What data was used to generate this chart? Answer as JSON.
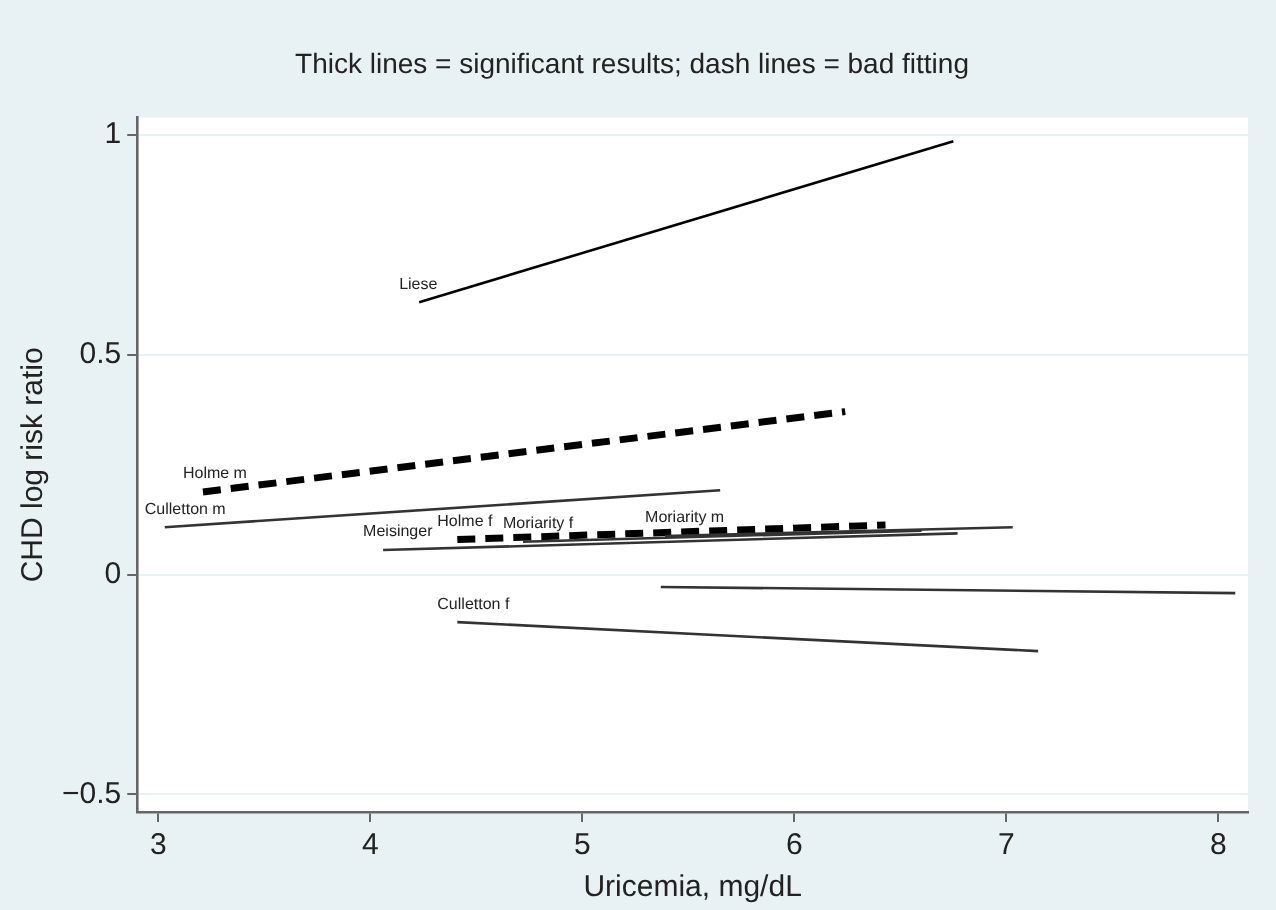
{
  "chart_data": {
    "type": "line",
    "title": "Thick lines = significant results; dash lines = bad fitting",
    "xlabel": "Uricemia, mg/dL",
    "ylabel": "CHD log risk ratio",
    "xlim": [
      2.9,
      8.14
    ],
    "xticks": [
      3,
      4,
      5,
      6,
      7,
      8
    ],
    "ylim": [
      -0.54,
      1.04
    ],
    "yticks": [
      {
        "value": -0.5,
        "label": "−0.5"
      },
      0,
      0.5,
      1
    ],
    "grid": "y",
    "legend": false,
    "marker": "none",
    "series": [
      {
        "name": "Liese",
        "color": "#000000",
        "line_style": "solid",
        "x": [
          4.23,
          6.75
        ],
        "values": [
          0.62,
          0.986
        ]
      },
      {
        "name": "Holme m",
        "color": "#000000",
        "line_style": "dashed",
        "x": [
          3.21,
          6.24
        ],
        "values": [
          0.188,
          0.371
        ]
      },
      {
        "name": "Culletton m",
        "color": "#333333",
        "line_style": "solid",
        "x": [
          3.03,
          5.65
        ],
        "values": [
          0.108,
          0.192
        ]
      },
      {
        "name": "Meisinger",
        "color": "#333333",
        "line_style": "solid",
        "x": [
          4.06,
          6.77
        ],
        "values": [
          0.056,
          0.094
        ]
      },
      {
        "name": "Moriarity f",
        "color": "#333333",
        "line_style": "solid",
        "x": [
          4.72,
          6.6
        ],
        "values": [
          0.075,
          0.1
        ]
      },
      {
        "name": "Moriarity m",
        "color": "#333333",
        "line_style": "solid",
        "x": [
          5.39,
          7.03
        ],
        "values": [
          0.088,
          0.108
        ]
      },
      {
        "name": "Holme f",
        "color": "#000000",
        "line_style": "dashed",
        "x": [
          4.41,
          6.43
        ],
        "values": [
          0.08,
          0.113
        ]
      },
      {
        "color": "#333333",
        "line_style": "solid",
        "x": [
          5.37,
          8.08
        ],
        "values": [
          -0.028,
          -0.042
        ]
      },
      {
        "name": "Culletton f",
        "color": "#333333",
        "line_style": "solid",
        "x": [
          4.41,
          7.15
        ],
        "values": [
          -0.108,
          -0.174
        ]
      }
    ]
  }
}
